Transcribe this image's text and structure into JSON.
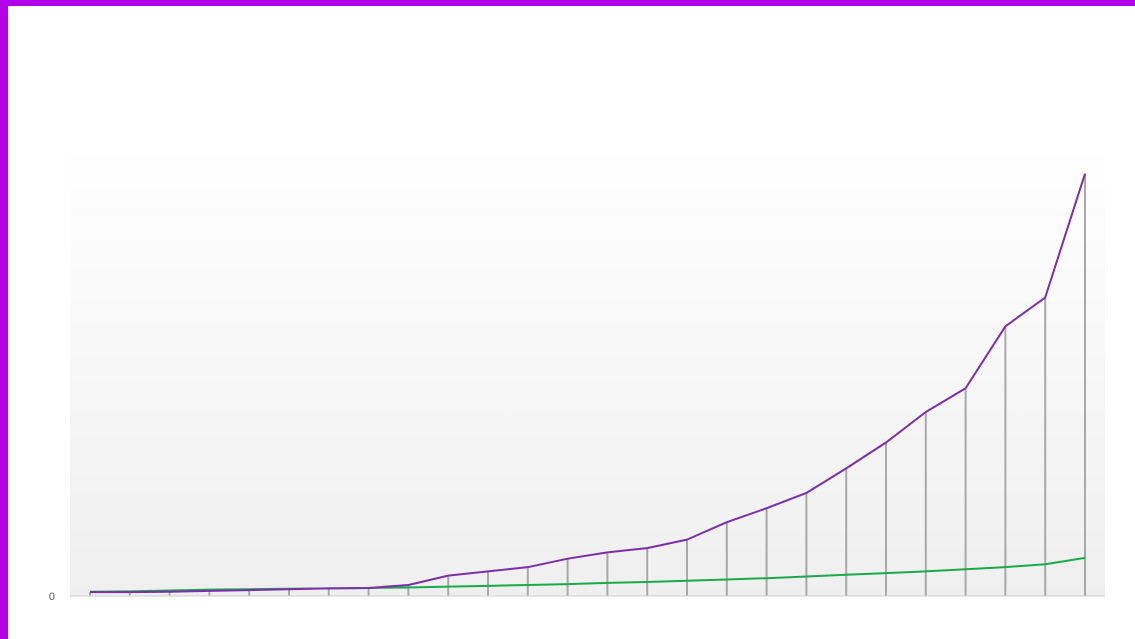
{
  "colors": {
    "frame": "#b100e8",
    "series_upper": "#7b2fa8",
    "series_lower": "#1aaa4a",
    "drop_lines": "#a8a8a8",
    "baseline": "#cfcfcf",
    "plot_bg_top": "#ffffff",
    "plot_bg_bottom": "#efefef",
    "tick_text": "#555555"
  },
  "chart_data": {
    "type": "line",
    "title": "",
    "xlabel": "",
    "ylabel": "",
    "x": [
      1,
      2,
      3,
      4,
      5,
      6,
      7,
      8,
      9,
      10,
      11,
      12,
      13,
      14,
      15,
      16,
      17,
      18,
      19,
      20,
      21,
      22,
      23,
      24,
      25,
      26
    ],
    "ylim": [
      0,
      100
    ],
    "y_ticks": [
      {
        "value": 0,
        "label": "0"
      }
    ],
    "grid": false,
    "legend": "none",
    "drop_lines": true,
    "series": [
      {
        "values": [
          0.9,
          0.9,
          1.0,
          1.2,
          1.4,
          1.6,
          1.8,
          1.9,
          2.6,
          4.8,
          5.8,
          6.8,
          8.8,
          10.3,
          11.3,
          13.3,
          17.4,
          20.7,
          24.3,
          30.1,
          36.2,
          43.4,
          49.0,
          63.6,
          70.4,
          99.6
        ]
      },
      {
        "values": [
          1.0,
          1.1,
          1.3,
          1.5,
          1.6,
          1.7,
          1.8,
          1.9,
          2.0,
          2.2,
          2.4,
          2.6,
          2.8,
          3.1,
          3.3,
          3.6,
          3.9,
          4.2,
          4.6,
          5.0,
          5.4,
          5.8,
          6.3,
          6.8,
          7.5,
          9.0
        ]
      }
    ]
  }
}
